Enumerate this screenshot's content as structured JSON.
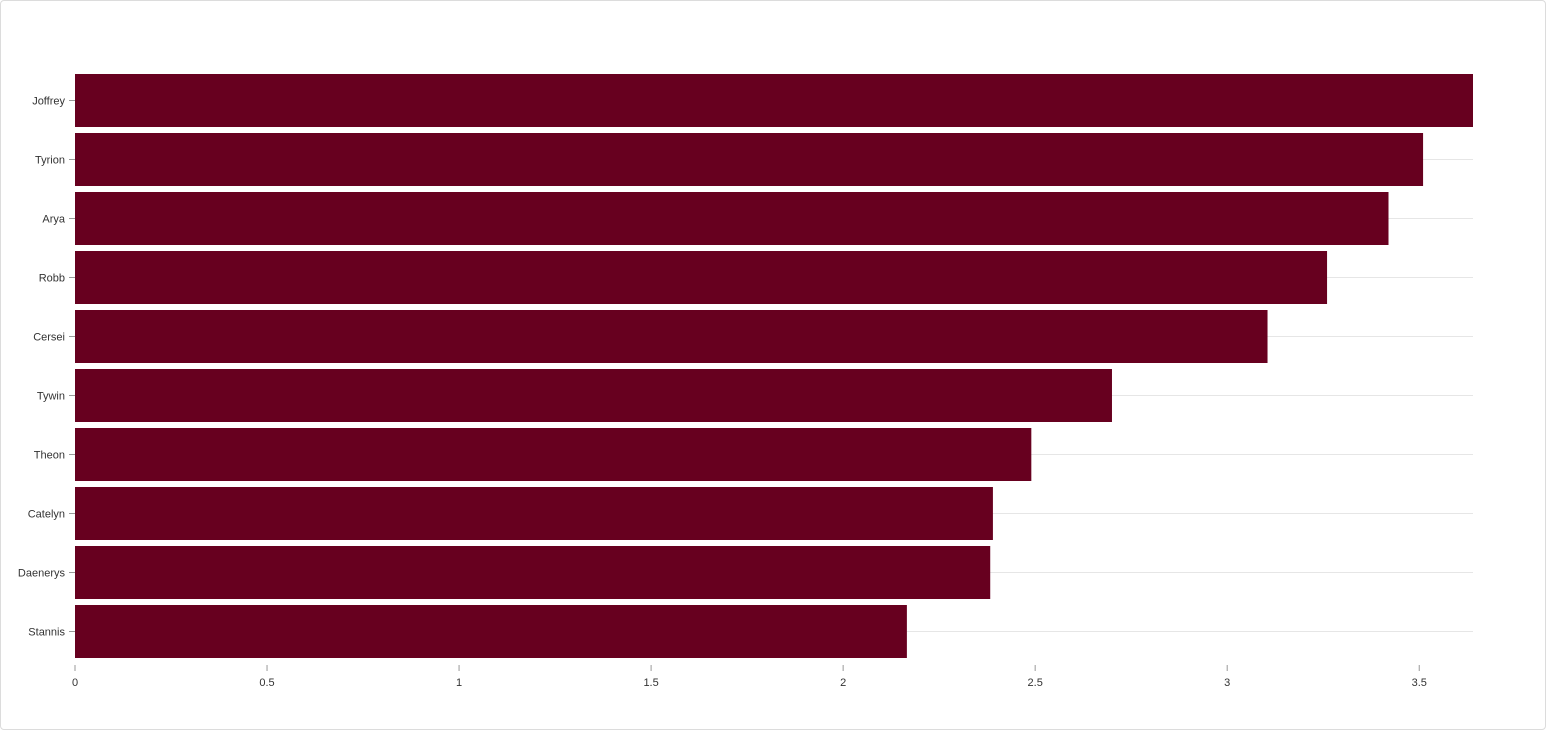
{
  "chart_data": {
    "type": "bar",
    "orientation": "horizontal",
    "title": "",
    "xlabel": "",
    "ylabel": "",
    "categories": [
      "Joffrey",
      "Tyrion",
      "Arya",
      "Robb",
      "Cersei",
      "Tywin",
      "Theon",
      "Catelyn",
      "Daenerys",
      "Stannis"
    ],
    "values": [
      3.64,
      3.51,
      3.42,
      3.26,
      3.105,
      2.7,
      2.49,
      2.39,
      2.383,
      2.166
    ],
    "xlim": [
      0,
      3.64
    ],
    "xticks": [
      "0",
      "0.5",
      "1",
      "1.5",
      "2",
      "2.5",
      "3",
      "3.5"
    ],
    "xtick_values": [
      0,
      0.5,
      1,
      1.5,
      2,
      2.5,
      3,
      3.5
    ],
    "grid": "horizontal",
    "legend": "none",
    "bar_color": "#67001f",
    "grid_color": "#e6e6e6"
  }
}
